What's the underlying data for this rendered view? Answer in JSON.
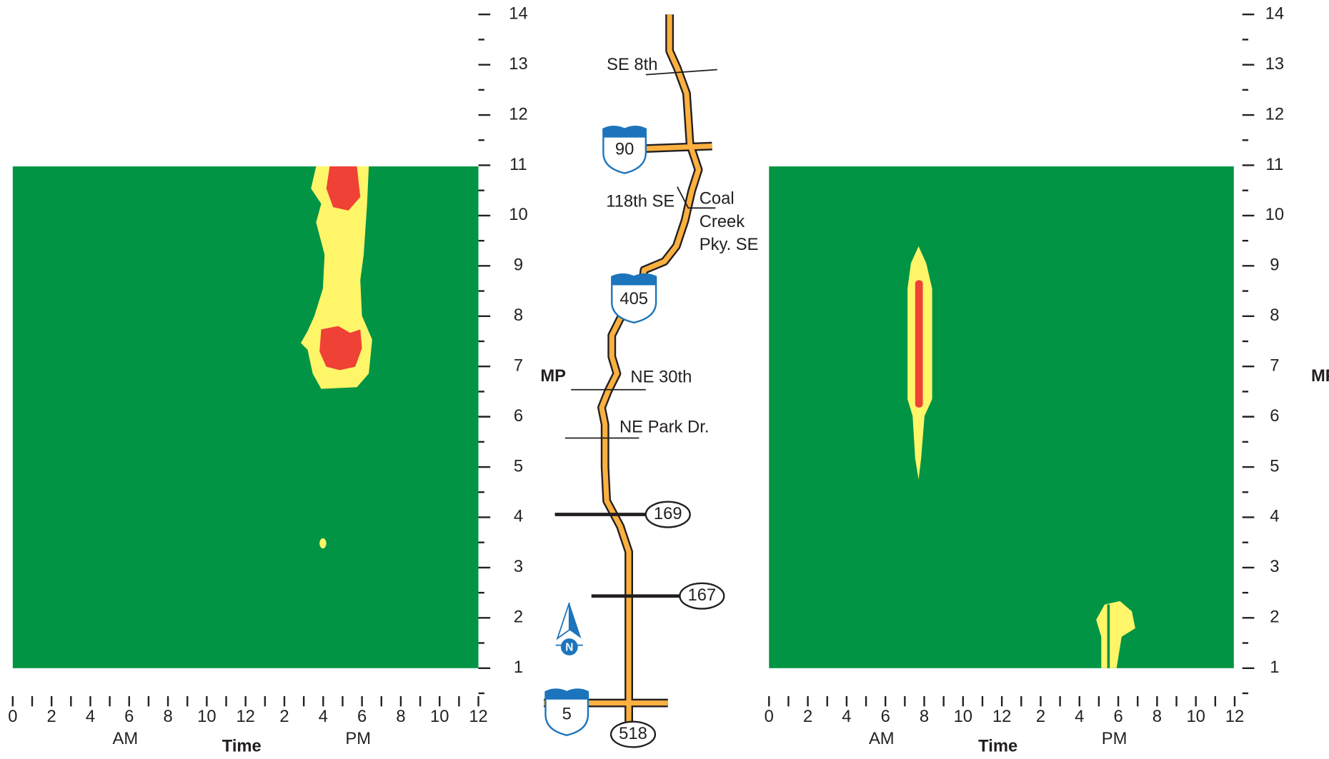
{
  "chart_data": [
    {
      "type": "heatmap",
      "x_label": "Time",
      "period_labels": [
        "AM",
        "PM"
      ],
      "y_label": "MP",
      "xlim": [
        0,
        24
      ],
      "xticks": [
        0,
        2,
        4,
        6,
        8,
        10,
        12,
        {
          "value": 14,
          "label": "2"
        },
        {
          "value": 16,
          "label": "4"
        },
        {
          "value": 18,
          "label": "6"
        },
        {
          "value": 20,
          "label": "8"
        },
        {
          "value": 22,
          "label": "10"
        },
        {
          "value": 24,
          "label": "12"
        }
      ],
      "ylim": [
        0.5,
        14
      ],
      "yticks": [
        1,
        2,
        3,
        4,
        5,
        6,
        7,
        8,
        9,
        10,
        11,
        12,
        13,
        14
      ]
    },
    {
      "type": "heatmap",
      "x_label": "Time",
      "period_labels": [
        "AM",
        "PM"
      ],
      "y_label": "MP",
      "xlim": [
        0,
        24
      ],
      "xticks": [
        0,
        2,
        4,
        6,
        8,
        10,
        12,
        {
          "value": 14,
          "label": "2"
        },
        {
          "value": 16,
          "label": "4"
        },
        {
          "value": 18,
          "label": "6"
        },
        {
          "value": 20,
          "label": "8"
        },
        {
          "value": 22,
          "label": "10"
        },
        {
          "value": 24,
          "label": "12"
        }
      ],
      "ylim": [
        0.5,
        14
      ],
      "yticks": [
        1,
        2,
        3,
        4,
        5,
        6,
        7,
        8,
        9,
        10,
        11,
        12,
        13,
        14
      ]
    }
  ],
  "map": {
    "streets": [
      "SE 8th",
      "118th SE",
      "NE 30th",
      "NE Park Dr."
    ],
    "coal_creek": [
      "Coal",
      "Creek",
      "Pky. SE"
    ],
    "routes": [
      "90",
      "405",
      "169",
      "167",
      "5",
      "518"
    ],
    "north": "N"
  }
}
